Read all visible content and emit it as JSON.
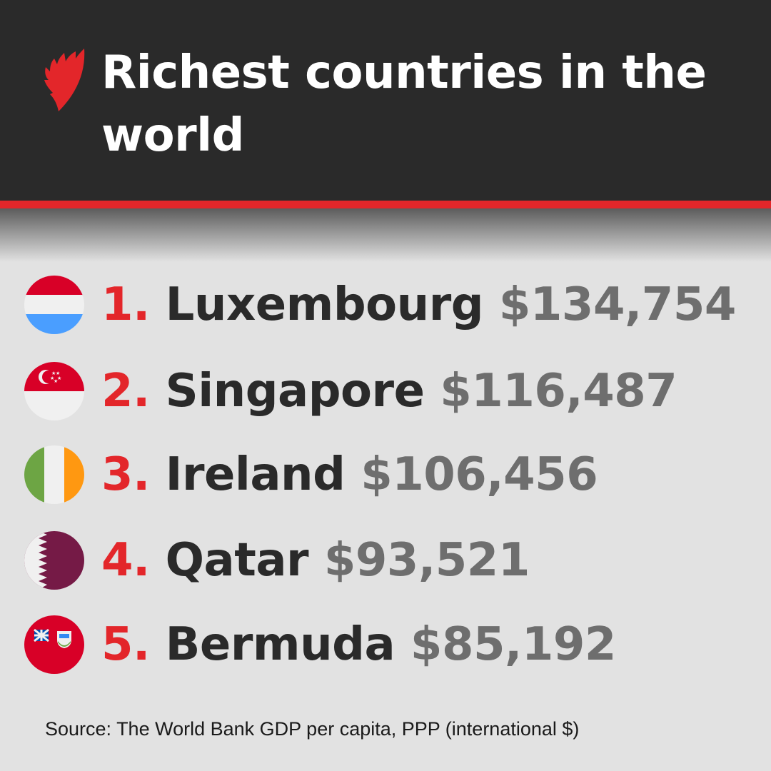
{
  "header": {
    "title": "Richest countries in the world",
    "logo": "SBS"
  },
  "colors": {
    "accent": "#e3262a",
    "header_bg": "#2a2a2a",
    "value": "#6e6e6e"
  },
  "rows": [
    {
      "rank": "1.",
      "country": "Luxembourg",
      "value": "$134,754",
      "flag": "luxembourg-flag"
    },
    {
      "rank": "2.",
      "country": "Singapore",
      "value": "$116,487",
      "flag": "singapore-flag"
    },
    {
      "rank": "3.",
      "country": "Ireland",
      "value": "$106,456",
      "flag": "ireland-flag"
    },
    {
      "rank": "4.",
      "country": "Qatar",
      "value": "$93,521",
      "flag": "qatar-flag"
    },
    {
      "rank": "5.",
      "country": "Bermuda",
      "value": "$85,192",
      "flag": "bermuda-flag"
    }
  ],
  "source": "Source: The World Bank GDP per capita, PPP (international $)"
}
